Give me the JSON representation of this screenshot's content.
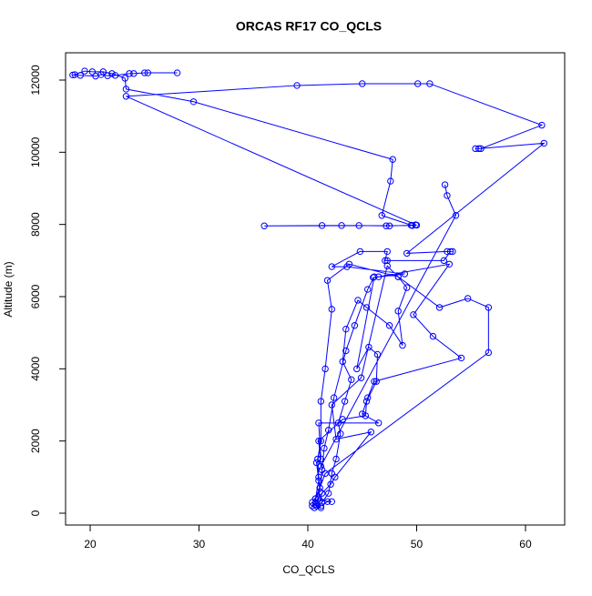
{
  "chart_data": {
    "type": "line",
    "title": "ORCAS RF17 CO_QCLS",
    "x_label": "CO_QCLS",
    "y_label": "Altitude (m)",
    "color": "#0000ff",
    "markers": true,
    "x": [
      28,
      25.3,
      25,
      24,
      23.6,
      22.3,
      21.6,
      21,
      20.5,
      19.1,
      18.4,
      18.6,
      19.5,
      20.2,
      21.2,
      22,
      23.2,
      23.3,
      29.5,
      47.8,
      47.6,
      46.8,
      49.5,
      50,
      47.5,
      47.2,
      44.7,
      43.1,
      41.3,
      36,
      49.6,
      49.9,
      23.3,
      39,
      45,
      50.1,
      51.2,
      61.5,
      55.9,
      55.4,
      55.7,
      61.7,
      49.1,
      52.8,
      53.3,
      53.1,
      52.5,
      47.3,
      47.1,
      47.3,
      44.8,
      42.2,
      43.6,
      48.9,
      46,
      46.5,
      53,
      49.7,
      51.5,
      54.1,
      46.1,
      45.5,
      45,
      46.5,
      41,
      41.2,
      40.8,
      41,
      40.7,
      40.4,
      40.6,
      41.2,
      41.8,
      42.2,
      41.1,
      41.3,
      42.1,
      42.5,
      45.8,
      42.6,
      42.2,
      44.9,
      47.3,
      48.3,
      52.1,
      54.7,
      56.6,
      56.6,
      41.6,
      41.1,
      40.7,
      40.8,
      41.2,
      40.4,
      41.1,
      41,
      40.9,
      41.2,
      41.2,
      41.6,
      42.2,
      41.8,
      43.8,
      48.3,
      49.1,
      48.3,
      48.7,
      47.5,
      45.4,
      44.6,
      43.5,
      43.2,
      44,
      43.4,
      42.8,
      43,
      42.6,
      42.2,
      41.9,
      41.3,
      40.8,
      41,
      41.3,
      41.5,
      41.9,
      42.4,
      43.5,
      44.3,
      45.5,
      46.1,
      44.5,
      45.6,
      46.4,
      46.3,
      45.4,
      45.3,
      43.2,
      41,
      41.2,
      53.6,
      52.8,
      52.6
    ],
    "values": [
      12200,
      12200,
      12200,
      12180,
      12180,
      12130,
      12120,
      12150,
      12110,
      12130,
      12140,
      12150,
      12250,
      12230,
      12230,
      12180,
      12050,
      11750,
      11400,
      9800,
      9200,
      8250,
      7980,
      7980,
      7960,
      7960,
      7970,
      7970,
      7970,
      7960,
      7970,
      7990,
      11550,
      11850,
      11900,
      11900,
      11900,
      10750,
      10100,
      10100,
      10100,
      10250,
      7200,
      7250,
      7250,
      7250,
      7000,
      7000,
      7000,
      7250,
      7250,
      6830,
      6830,
      6630,
      6530,
      6550,
      6900,
      5500,
      4900,
      4300,
      3650,
      3200,
      2750,
      2500,
      2500,
      1500,
      1400,
      900,
      400,
      200,
      150,
      200,
      320,
      320,
      350,
      550,
      800,
      1000,
      2250,
      2050,
      3000,
      3750,
      6850,
      6550,
      5700,
      5950,
      5700,
      4450,
      1100,
      700,
      400,
      200,
      150,
      300,
      600,
      1000,
      1500,
      2000,
      3100,
      4000,
      5650,
      6450,
      6900,
      6550,
      6250,
      5600,
      4650,
      5200,
      5700,
      5900,
      5100,
      4200,
      3700,
      3100,
      2500,
      2200,
      1500,
      1100,
      550,
      300,
      200,
      400,
      1200,
      1800,
      2300,
      3200,
      4500,
      5200,
      6200,
      6550,
      4000,
      4600,
      4400,
      3650,
      3100,
      2700,
      2600,
      2000,
      1300,
      8250,
      8800,
      9100
    ],
    "xlim": [
      17.74,
      63.6
    ],
    "ylim": [
      -328,
      12756
    ],
    "xticks": [
      20,
      30,
      40,
      50,
      60
    ],
    "yticks": [
      0,
      2000,
      4000,
      6000,
      8000,
      10000,
      12000
    ]
  }
}
